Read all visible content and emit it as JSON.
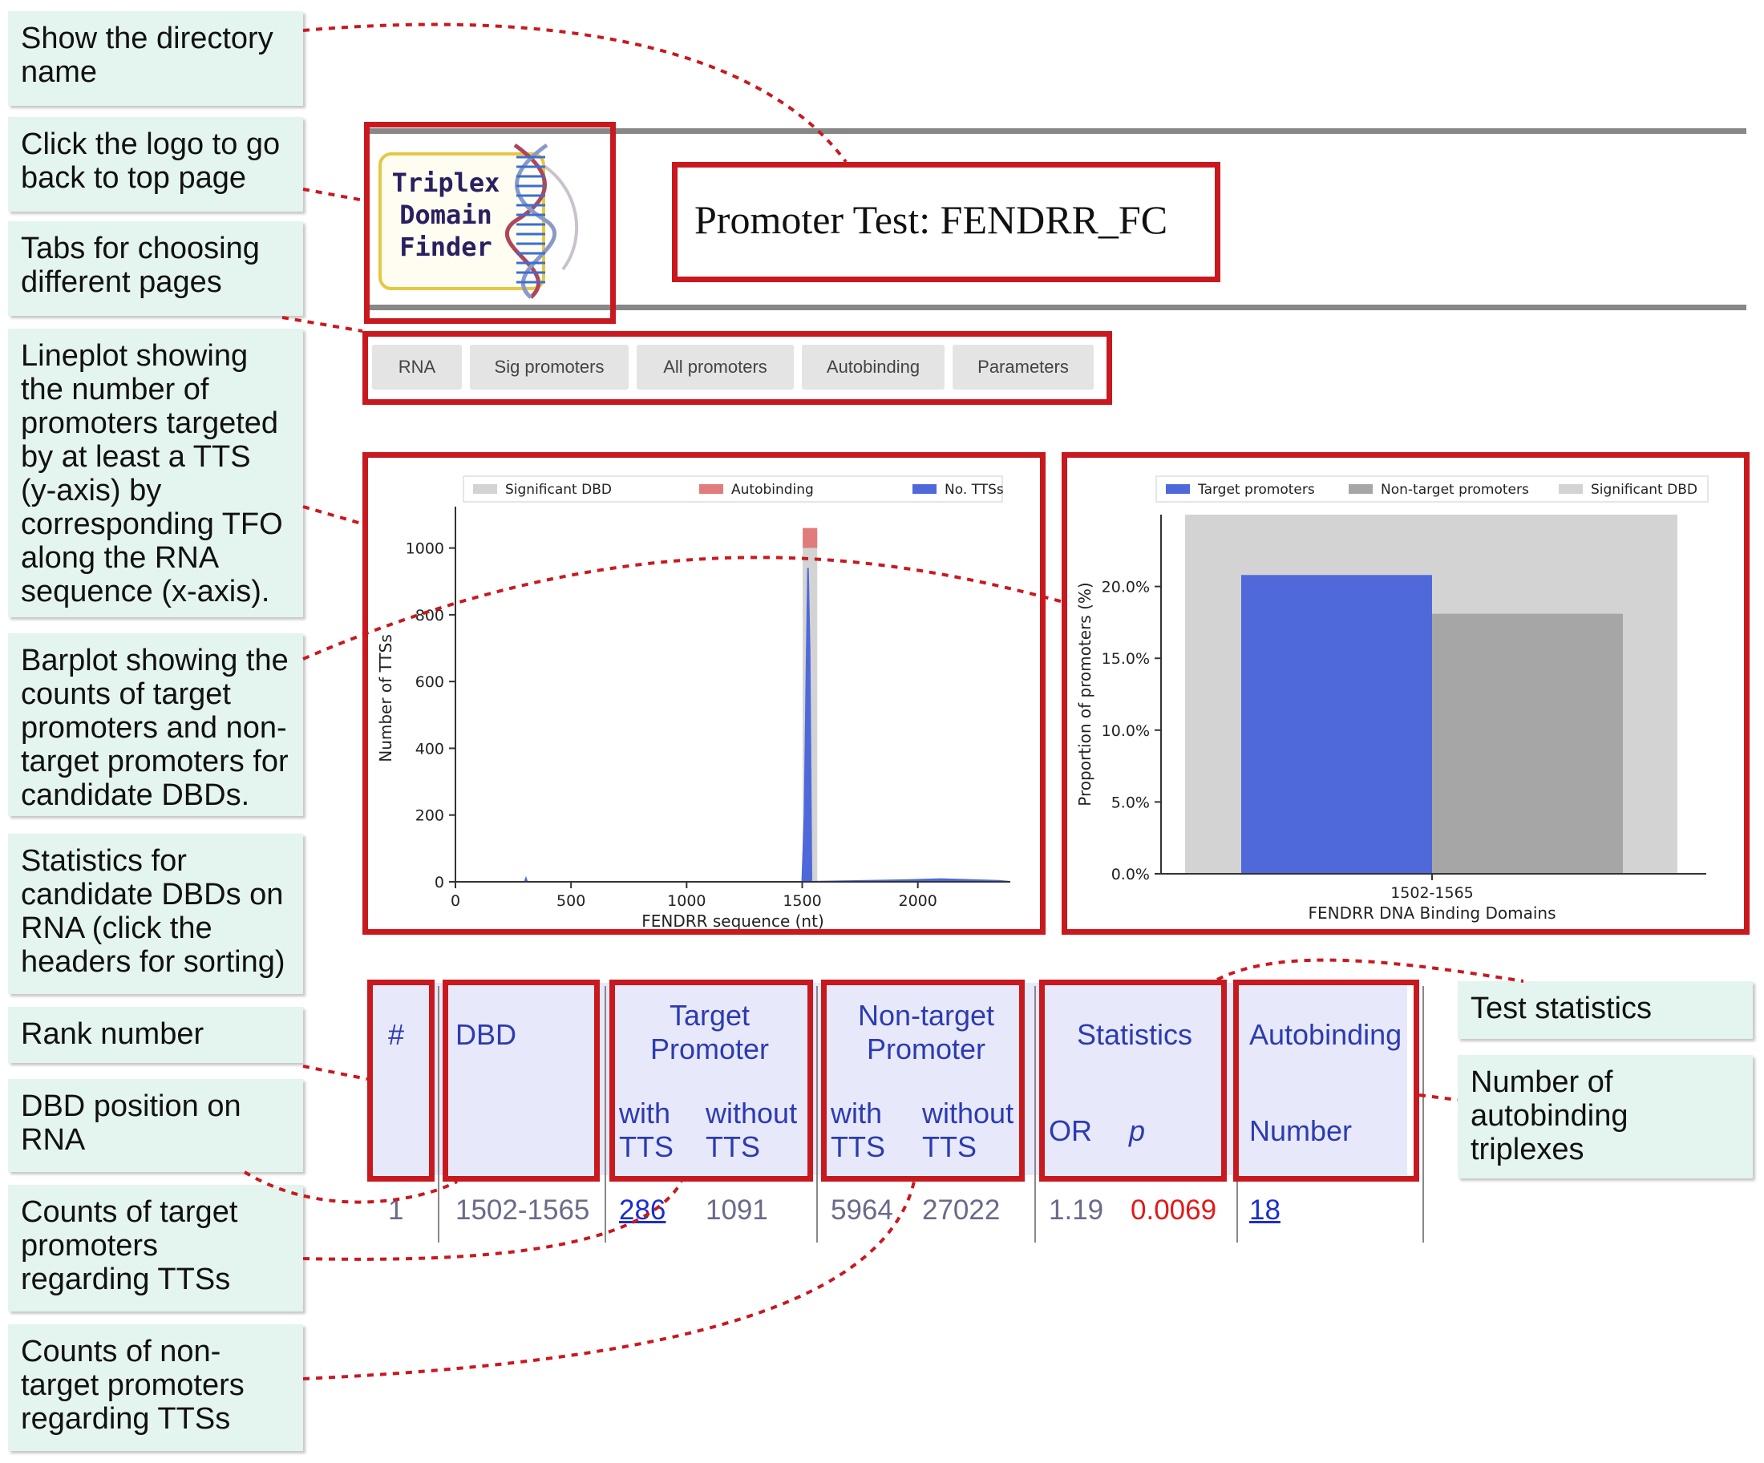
{
  "callouts": {
    "directory": "Show the directory name",
    "logo": "Click the logo to go back to top page",
    "tabs": "Tabs for choosing different pages",
    "lineplot": "Lineplot showing the number of promoters targeted by at least a TTS (y-axis) by corresponding TFO along the RNA sequence (x-axis).",
    "barplot": "Barplot showing the counts of target promoters and non-target promoters for candidate DBDs.",
    "statistics": "Statistics for candidate DBDs on RNA (click the headers for sorting)",
    "rank": "Rank number",
    "dbd_position": "DBD position on RNA",
    "target_counts": "Counts of target promoters regarding TTSs",
    "nontarget_counts": "Counts of non-target promoters regarding TTSs",
    "test_statistics": "Test statistics",
    "autobinding_number": "Number of autobinding triplexes"
  },
  "logo": {
    "line1": "Triplex",
    "line2": "Domain",
    "line3": "Finder"
  },
  "page_title": "Promoter Test: FENDRR_FC",
  "tabs": [
    "RNA",
    "Sig promoters",
    "All promoters",
    "Autobinding",
    "Parameters"
  ],
  "table": {
    "headers": {
      "rank": "#",
      "dbd": "DBD",
      "target_promoter": "Target Promoter",
      "nontarget_promoter": "Non-target Promoter",
      "statistics": "Statistics",
      "autobinding": "Autobinding",
      "with_tts": "with TTS",
      "without_tts": "without TTS",
      "or": "OR",
      "p": "p",
      "number": "Number"
    },
    "rows": [
      {
        "rank": "1",
        "dbd": "1502-1565",
        "target_with": "286",
        "target_without": "1091",
        "nontarget_with": "5964",
        "nontarget_without": "27022",
        "or": "1.19",
        "p": "0.0069",
        "autobinding": "18"
      }
    ]
  },
  "colors": {
    "highlight": "#c8191f",
    "callout_bg": "#e4f4ef",
    "header_bg": "#e7e9fb",
    "header_text": "#2d3bb0",
    "p_value": "#e01a1a",
    "blue_bar": "#4f69da"
  },
  "chart_data": [
    {
      "type": "line",
      "legend": [
        "Significant DBD",
        "Autobinding",
        "No. TTSs"
      ],
      "legend_position": "top",
      "xlabel": "FENDRR sequence (nt)",
      "ylabel": "Number of TTSs",
      "x_ticks": [
        "0",
        "500",
        "1000",
        "1500",
        "2000"
      ],
      "y_ticks": [
        "0",
        "200",
        "400",
        "600",
        "800",
        "1000"
      ],
      "xlim": [
        0,
        2400
      ],
      "ylim": [
        0,
        1100
      ],
      "series": [
        {
          "name": "No. TTSs",
          "x": [
            0,
            300,
            305,
            310,
            1500,
            1510,
            1518,
            1525,
            1532,
            1540,
            1950,
            2100,
            2350,
            2400
          ],
          "y": [
            0,
            0,
            10,
            0,
            0,
            200,
            620,
            940,
            700,
            0,
            5,
            8,
            3,
            0
          ]
        }
      ],
      "significant_dbd": {
        "start": 1502,
        "end": 1565,
        "value": 1000
      },
      "autobinding": {
        "start": 1502,
        "end": 1565,
        "value": 60
      }
    },
    {
      "type": "bar",
      "legend": [
        "Target promoters",
        "Non-target promoters",
        "Significant DBD"
      ],
      "legend_position": "top",
      "categories": [
        "1502-1565"
      ],
      "xlabel": "FENDRR DNA Binding Domains",
      "ylabel": "Proportion of promoters (%)",
      "y_ticks": [
        "0.0%",
        "5.0%",
        "10.0%",
        "15.0%",
        "20.0%"
      ],
      "ylim": [
        0,
        25
      ],
      "series": [
        {
          "name": "Target promoters",
          "values": [
            20.8
          ]
        },
        {
          "name": "Non-target promoters",
          "values": [
            18.1
          ]
        }
      ],
      "significant_dbd_value": 25
    }
  ]
}
